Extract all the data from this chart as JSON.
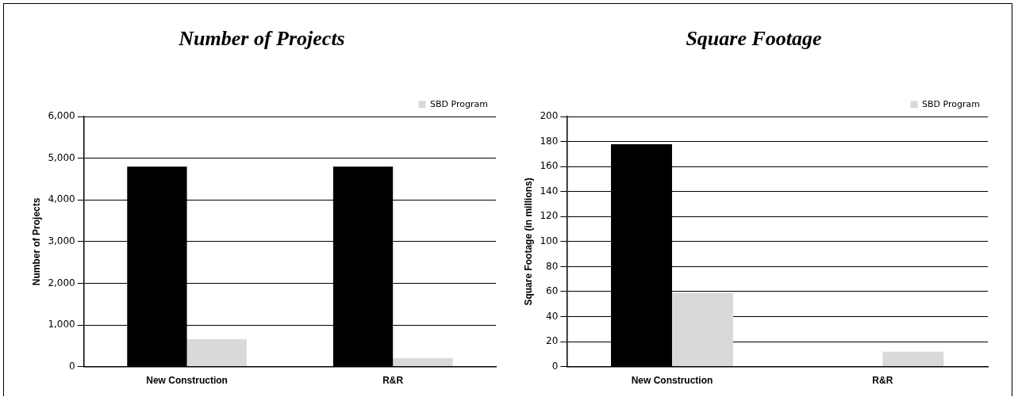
{
  "chart_data": [
    {
      "type": "bar",
      "title": "Number of Projects",
      "ylabel": "Number of Projects",
      "categories": [
        "New Construction",
        "R&R"
      ],
      "series": [
        {
          "color": "#000000",
          "values": [
            4800,
            4800
          ]
        },
        {
          "name": "SBD Program",
          "color": "#d9d9d9",
          "values": [
            660,
            200
          ]
        }
      ],
      "ylim": [
        0,
        6000
      ],
      "yticks": [
        {
          "value": 0,
          "label": "0"
        },
        {
          "value": 1000,
          "label": "1,000"
        },
        {
          "value": 2000,
          "label": "2,000"
        },
        {
          "value": 3000,
          "label": "3,000"
        },
        {
          "value": 4000,
          "label": "4,000"
        },
        {
          "value": 5000,
          "label": "5,000"
        },
        {
          "value": 6000,
          "label": "6,000"
        }
      ],
      "grid": "y",
      "legend": "top right"
    },
    {
      "type": "bar",
      "title": "Square Footage",
      "ylabel": "Square Footage (in millions)",
      "categories": [
        "New Construction",
        "R&R"
      ],
      "series": [
        {
          "color": "#000000",
          "values": [
            178,
            null
          ]
        },
        {
          "name": "SBD Program",
          "color": "#d9d9d9",
          "values": [
            59,
            12
          ]
        }
      ],
      "ylim": [
        0,
        200
      ],
      "yticks": [
        0,
        20,
        40,
        60,
        80,
        100,
        120,
        140,
        160,
        180,
        200
      ],
      "grid": "y",
      "legend": "top right"
    }
  ]
}
